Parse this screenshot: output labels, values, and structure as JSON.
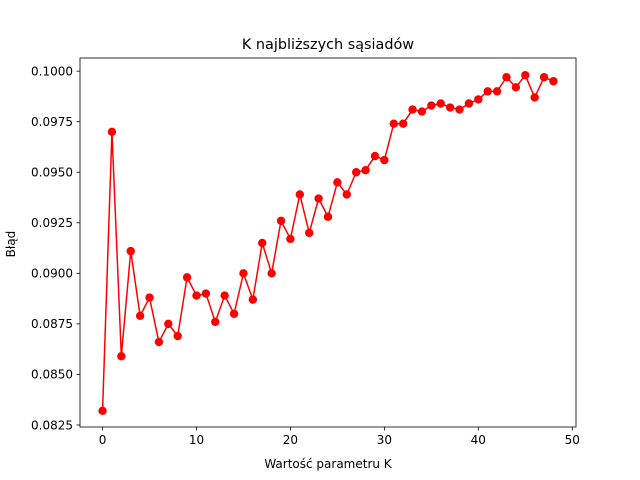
{
  "chart_data": {
    "type": "line",
    "title": "K najbliższych sąsiadów",
    "xlabel": "Wartość parametru K",
    "ylabel": "Błąd",
    "xlim": [
      -2.4,
      50.4
    ],
    "ylim": [
      0.0824,
      0.10065
    ],
    "xticks": [
      0,
      10,
      20,
      30,
      40,
      50
    ],
    "xtick_labels": [
      "0",
      "10",
      "20",
      "30",
      "40",
      "50"
    ],
    "yticks": [
      0.0825,
      0.085,
      0.0875,
      0.09,
      0.0925,
      0.095,
      0.0975,
      0.1
    ],
    "ytick_labels": [
      "0.0825",
      "0.0850",
      "0.0875",
      "0.0900",
      "0.0925",
      "0.0950",
      "0.0975",
      "0.1000"
    ],
    "grid": false,
    "legend": "none",
    "series": [
      {
        "color": "#ff0000",
        "marker": "circle",
        "x": [
          0,
          1,
          2,
          3,
          4,
          5,
          6,
          7,
          8,
          9,
          10,
          11,
          12,
          13,
          14,
          15,
          16,
          17,
          18,
          19,
          20,
          21,
          22,
          23,
          24,
          25,
          26,
          27,
          28,
          29,
          30,
          31,
          32,
          33,
          34,
          35,
          36,
          37,
          38,
          39,
          40,
          41,
          42,
          43,
          44,
          45,
          46,
          47,
          48
        ],
        "values": [
          0.0832,
          0.097,
          0.0859,
          0.0911,
          0.0879,
          0.0888,
          0.0866,
          0.0875,
          0.0869,
          0.0898,
          0.0889,
          0.089,
          0.0876,
          0.0889,
          0.088,
          0.09,
          0.0887,
          0.0915,
          0.09,
          0.0926,
          0.0917,
          0.0939,
          0.092,
          0.0937,
          0.0928,
          0.0945,
          0.0939,
          0.095,
          0.0951,
          0.0958,
          0.0956,
          0.0974,
          0.0974,
          0.0981,
          0.098,
          0.0983,
          0.0984,
          0.0982,
          0.0981,
          0.0984,
          0.0986,
          0.099,
          0.099,
          0.0997,
          0.0992,
          0.0998,
          0.0987,
          0.0997,
          0.0995
        ]
      }
    ]
  }
}
